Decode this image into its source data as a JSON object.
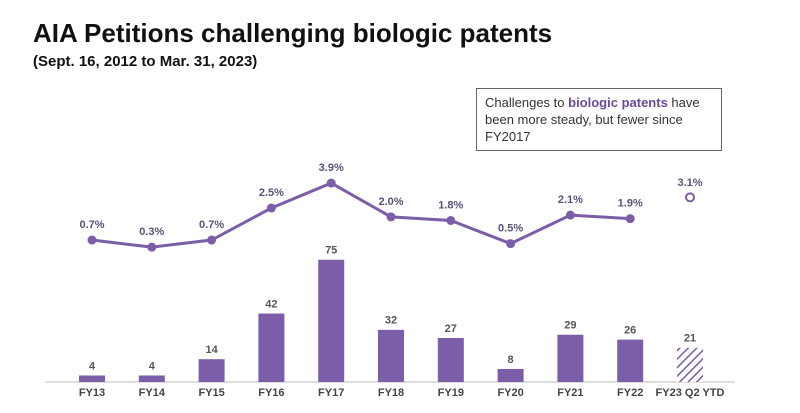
{
  "chart_data": {
    "type": "bar_line",
    "title": "AIA Petitions challenging biologic patents",
    "subtitle": "(Sept. 16, 2012 to Mar. 31, 2023)",
    "annotation": {
      "parts": [
        "Challenges to ",
        "biologic patents",
        " have been more steady, but fewer since FY2017"
      ]
    },
    "categories": [
      "FY13",
      "FY14",
      "FY15",
      "FY16",
      "FY17",
      "FY18",
      "FY19",
      "FY20",
      "FY21",
      "FY22",
      "FY23 Q2 YTD"
    ],
    "series": [
      {
        "kind": "bar",
        "color": "#7b5ea7",
        "hatched": false,
        "values": [
          4,
          4,
          14,
          42,
          75,
          32,
          27,
          8,
          29,
          26,
          null
        ]
      },
      {
        "kind": "bar",
        "color": "#7b5ea7",
        "hatched": true,
        "values": [
          null,
          null,
          null,
          null,
          null,
          null,
          null,
          null,
          null,
          null,
          21
        ]
      },
      {
        "kind": "line",
        "color": "#7b5ea7",
        "values": [
          0.7,
          0.3,
          0.7,
          2.5,
          3.9,
          2.0,
          1.8,
          0.5,
          2.1,
          1.9,
          null
        ],
        "value_labels": [
          "0.7%",
          "0.3%",
          "0.7%",
          "2.5%",
          "3.9%",
          "2.0%",
          "1.8%",
          "0.5%",
          "2.1%",
          "1.9%",
          null
        ]
      },
      {
        "kind": "point",
        "color": "#7b5ea7",
        "hollow": true,
        "values": [
          null,
          null,
          null,
          null,
          null,
          null,
          null,
          null,
          null,
          null,
          3.1
        ],
        "value_labels": [
          null,
          null,
          null,
          null,
          null,
          null,
          null,
          null,
          null,
          null,
          "3.1%"
        ]
      }
    ]
  }
}
